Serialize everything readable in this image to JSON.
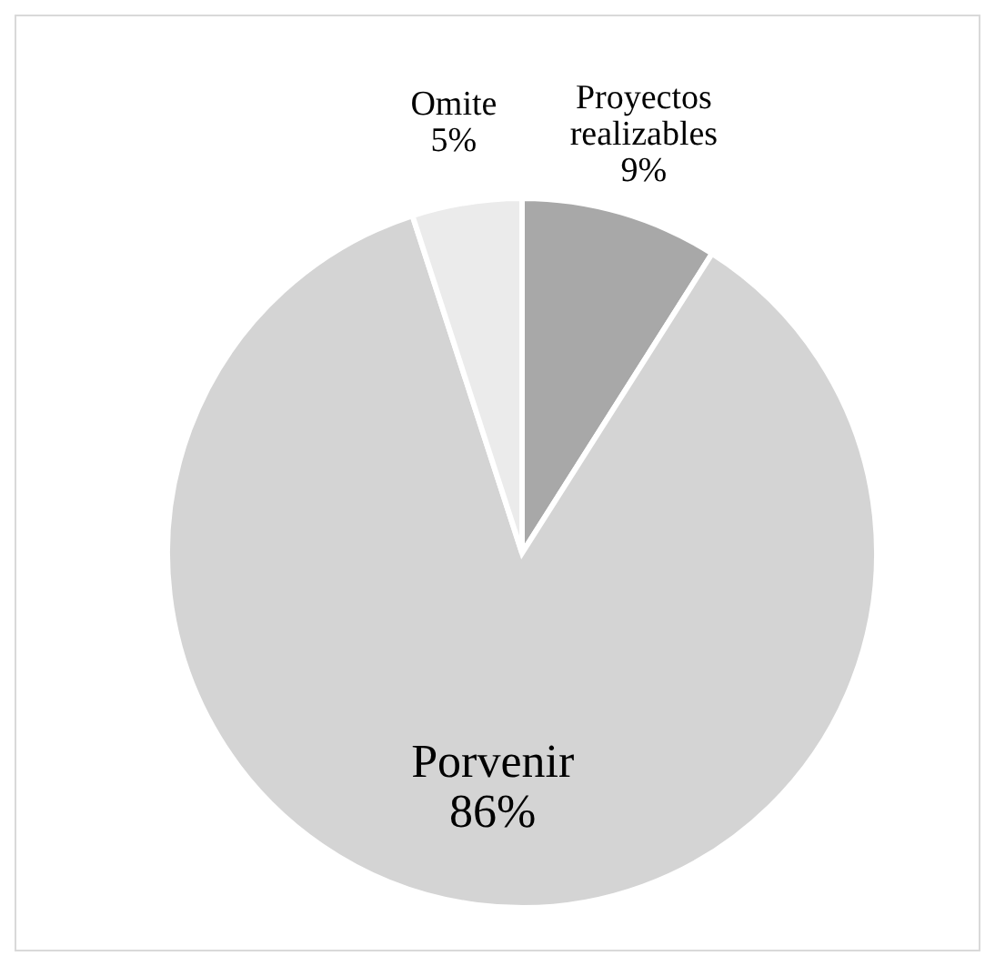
{
  "chart_data": {
    "type": "pie",
    "categories": [
      "Proyectos realizables",
      "Porvenir",
      "Omite"
    ],
    "values": [
      9,
      86,
      5
    ],
    "value_labels": [
      "9%",
      "86%",
      "5%"
    ],
    "colors": [
      "#a8a8a8",
      "#d4d4d4",
      "#ebebeb"
    ]
  }
}
